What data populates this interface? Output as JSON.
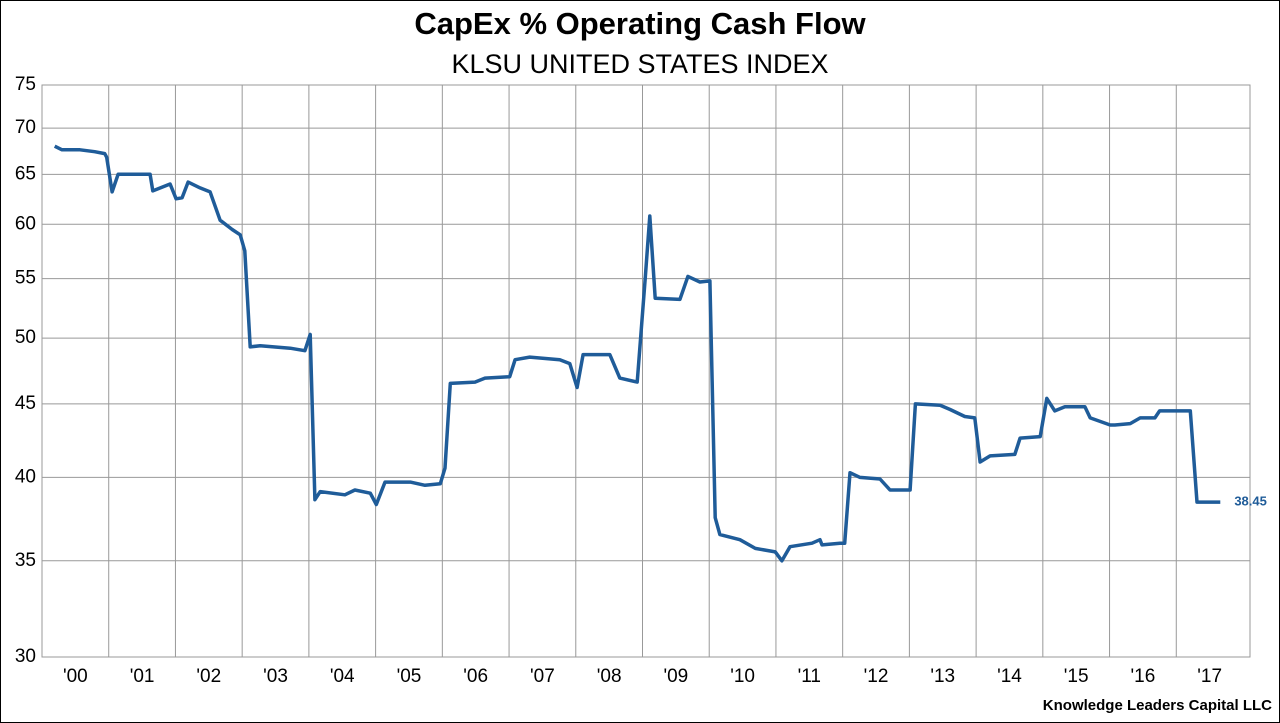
{
  "chart_data": {
    "type": "line",
    "title": "CapEx % Operating Cash Flow",
    "subtitle": "KLSU UNITED STATES INDEX",
    "source": "Knowledge Leaders Capital LLC",
    "color": "#1f5c99",
    "log_scale": true,
    "grid": true,
    "xlim": [
      2000,
      2018
    ],
    "xticks": [
      {
        "value": 2000,
        "label": "'00"
      },
      {
        "value": 2001,
        "label": "'01"
      },
      {
        "value": 2002,
        "label": "'02"
      },
      {
        "value": 2003,
        "label": "'03"
      },
      {
        "value": 2004,
        "label": "'04"
      },
      {
        "value": 2005,
        "label": "'05"
      },
      {
        "value": 2006,
        "label": "'06"
      },
      {
        "value": 2007,
        "label": "'07"
      },
      {
        "value": 2008,
        "label": "'08"
      },
      {
        "value": 2009,
        "label": "'09"
      },
      {
        "value": 2010,
        "label": "'10"
      },
      {
        "value": 2011,
        "label": "'11"
      },
      {
        "value": 2012,
        "label": "'12"
      },
      {
        "value": 2013,
        "label": "'13"
      },
      {
        "value": 2014,
        "label": "'14"
      },
      {
        "value": 2015,
        "label": "'15"
      },
      {
        "value": 2016,
        "label": "'16"
      },
      {
        "value": 2017,
        "label": "'17"
      }
    ],
    "ylim": [
      30,
      75
    ],
    "yticks": [
      30,
      35,
      40,
      45,
      50,
      55,
      60,
      65,
      70,
      75
    ],
    "x": [
      2000.19,
      2000.3,
      2000.57,
      2000.79,
      2000.94,
      2000.97,
      2001.05,
      2001.14,
      2001.62,
      2001.66,
      2001.92,
      2002.01,
      2002.1,
      2002.19,
      2002.37,
      2002.52,
      2002.67,
      2002.85,
      2002.97,
      2003.04,
      2003.12,
      2003.27,
      2003.72,
      2003.94,
      2004.02,
      2004.09,
      2004.17,
      2004.54,
      2004.69,
      2004.92,
      2005.01,
      2005.14,
      2005.52,
      2005.74,
      2005.97,
      2006.04,
      2006.12,
      2006.49,
      2006.64,
      2007.01,
      2007.09,
      2007.31,
      2007.76,
      2007.91,
      2008.02,
      2008.11,
      2008.51,
      2008.66,
      2008.92,
      2009.04,
      2009.11,
      2009.19,
      2009.56,
      2009.68,
      2009.86,
      2010.01,
      2010.09,
      2010.16,
      2010.46,
      2010.69,
      2010.99,
      2011.09,
      2011.21,
      2011.54,
      2011.66,
      2011.69,
      2011.96,
      2012.03,
      2012.11,
      2012.26,
      2012.56,
      2012.71,
      2013.01,
      2013.09,
      2013.46,
      2013.61,
      2013.83,
      2013.98,
      2014.06,
      2014.21,
      2014.58,
      2014.66,
      2014.96,
      2015.06,
      2015.18,
      2015.33,
      2015.63,
      2015.71,
      2016.01,
      2016.08,
      2016.31,
      2016.46,
      2016.68,
      2016.75,
      2017.21,
      2017.31,
      2017.66
    ],
    "values": [
      68.0,
      67.6,
      67.6,
      67.4,
      67.2,
      66.8,
      63.2,
      65.0,
      65.0,
      63.3,
      64.0,
      62.5,
      62.6,
      64.2,
      63.6,
      63.2,
      60.4,
      59.5,
      59.0,
      57.5,
      49.3,
      49.4,
      49.2,
      49.0,
      50.3,
      38.6,
      39.1,
      38.9,
      39.2,
      39.0,
      38.3,
      39.7,
      39.7,
      39.5,
      39.6,
      40.6,
      46.5,
      46.6,
      46.9,
      47.0,
      48.3,
      48.5,
      48.3,
      48.0,
      46.2,
      48.7,
      48.7,
      46.9,
      46.6,
      55.0,
      60.8,
      53.3,
      53.2,
      55.2,
      54.7,
      54.8,
      37.5,
      36.5,
      36.2,
      35.7,
      35.5,
      35.0,
      35.8,
      36.0,
      36.2,
      35.9,
      36.0,
      36.0,
      40.3,
      40.0,
      39.9,
      39.2,
      39.2,
      45.0,
      44.9,
      44.6,
      44.1,
      44.0,
      41.0,
      41.4,
      41.5,
      42.6,
      42.7,
      45.4,
      44.5,
      44.8,
      44.8,
      44.0,
      43.5,
      43.5,
      43.6,
      44.0,
      44.0,
      44.5,
      44.5,
      38.45,
      38.45
    ]
  }
}
